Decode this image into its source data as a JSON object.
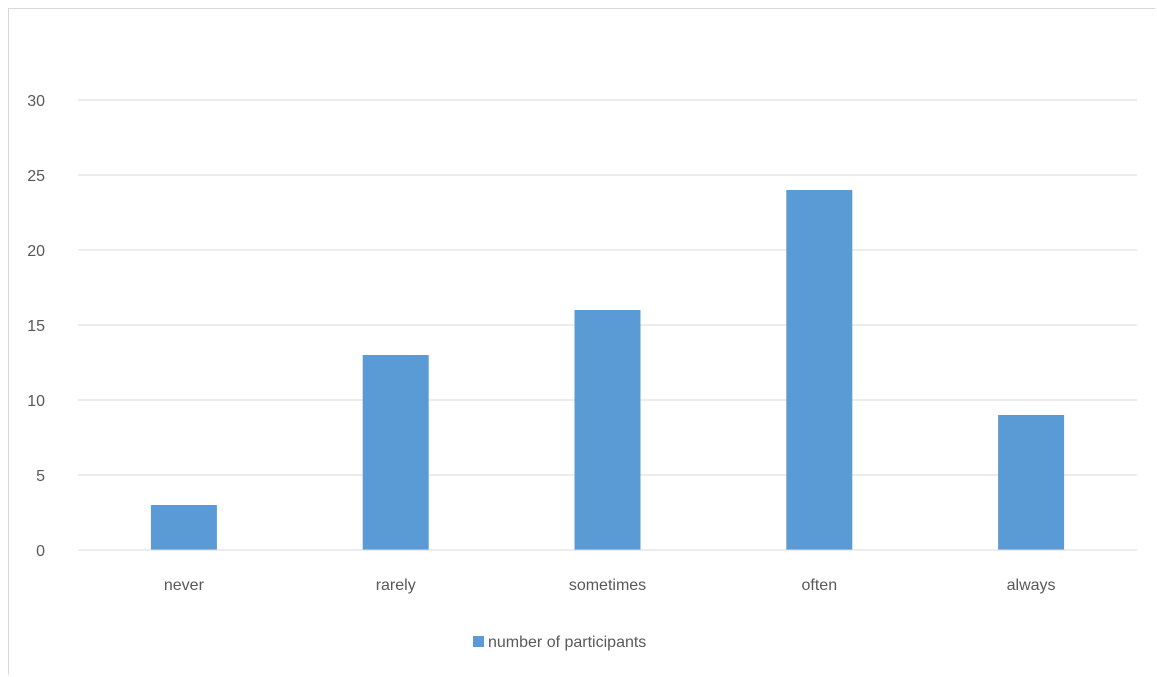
{
  "chart_data": {
    "type": "bar",
    "categories": [
      "never",
      "rarely",
      "sometimes",
      "often",
      "always"
    ],
    "series": [
      {
        "name": "number of participants",
        "values": [
          3,
          13,
          16,
          24,
          9
        ],
        "color": "#5b9bd5"
      }
    ],
    "title": "",
    "xlabel": "",
    "ylabel": "",
    "ylim": [
      0,
      30
    ],
    "yticks": [
      "0",
      "5",
      "10",
      "15",
      "20",
      "25",
      "30"
    ],
    "grid": true,
    "legend_position": "bottom",
    "colors": {
      "gridline": "#d9d9d9",
      "axis": "#d9d9d9",
      "text": "#595959"
    }
  }
}
